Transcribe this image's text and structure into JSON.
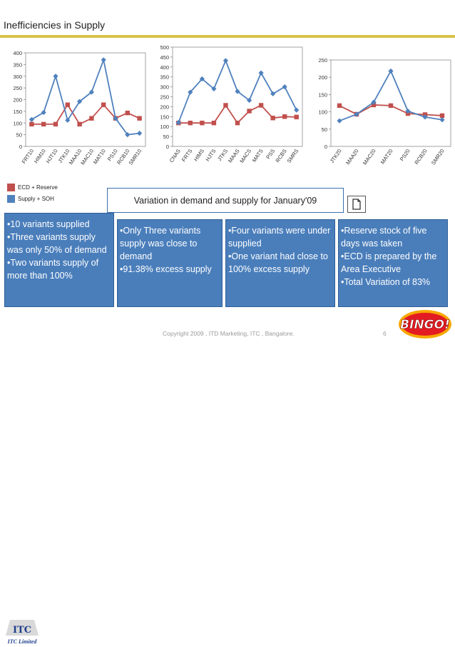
{
  "slide": {
    "title": "Inefficiencies in Supply",
    "variation_caption": "Variation  in demand and supply for January'09",
    "footer": "Copyright 2009 , ITD  Marketing, ITC , Bangalore.",
    "page_number": "6",
    "itc_logo_text": "ITC Limited",
    "bingo_logo_text": "BINGO!"
  },
  "legend": {
    "items": [
      {
        "label": "ECD + Reserve",
        "color": "#c0504d"
      },
      {
        "label": "Supply + SOH",
        "color": "#4f81bd"
      }
    ]
  },
  "boxes": [
    {
      "lines": [
        "•10  variants supplied",
        "•Three variants supply was only 50% of demand",
        "•Two variants supply of more than 100%"
      ]
    },
    {
      "lines": [
        "•Only Three variants supply was close to demand",
        "•91.38% excess supply"
      ]
    },
    {
      "lines": [
        "•Four variants were under supplied",
        "•One variant had close to 100% excess supply"
      ]
    },
    {
      "lines": [
        "•Reserve stock of five days was taken",
        "•ECD is prepared by the Area Executive",
        "•Total Variation of 83%"
      ]
    }
  ],
  "chart_data": [
    {
      "type": "line",
      "categories": [
        "FRT10",
        "HIM10",
        "HJT10",
        "JTK10",
        "MAA10",
        "MAC10",
        "MAT10",
        "PS10",
        "RCB10",
        "SMR10"
      ],
      "ylim": [
        0,
        400
      ],
      "yticks": [
        0,
        50,
        100,
        150,
        200,
        250,
        300,
        350,
        400
      ],
      "series": [
        {
          "name": "ECD + Reserve",
          "color": "#c0504d",
          "values": [
            95,
            95,
            95,
            178,
            95,
            120,
            178,
            120,
            143,
            120
          ]
        },
        {
          "name": "Supply + SOH",
          "color": "#4f81bd",
          "values": [
            115,
            145,
            300,
            112,
            192,
            232,
            370,
            120,
            50,
            56
          ]
        }
      ]
    },
    {
      "type": "line",
      "categories": [
        "CNAS",
        "FRTS",
        "HIMS",
        "HJTS",
        "JTKS",
        "MAAS",
        "MACS",
        "MATS",
        "PSS",
        "RCBS",
        "SMRS"
      ],
      "ylim": [
        0,
        500
      ],
      "yticks": [
        0,
        50,
        100,
        150,
        200,
        250,
        300,
        350,
        400,
        450,
        500
      ],
      "series": [
        {
          "name": "ECD + Reserve",
          "color": "#c0504d",
          "values": [
            118,
            118,
            118,
            118,
            207,
            118,
            178,
            207,
            143,
            150,
            148
          ]
        },
        {
          "name": "Supply + SOH",
          "color": "#4f81bd",
          "values": [
            120,
            273,
            340,
            290,
            432,
            277,
            232,
            370,
            265,
            300,
            183
          ]
        }
      ]
    },
    {
      "type": "line",
      "categories": [
        "JTK20",
        "MAA20",
        "MAC20",
        "MAT20",
        "PS20",
        "RCB20",
        "SMR20"
      ],
      "ylim": [
        0,
        250
      ],
      "yticks": [
        0,
        50,
        100,
        150,
        200,
        250
      ],
      "series": [
        {
          "name": "ECD + Reserve",
          "color": "#c0504d",
          "values": [
            118,
            93,
            120,
            118,
            95,
            92,
            89
          ]
        },
        {
          "name": "Supply + SOH",
          "color": "#4f81bd",
          "values": [
            74,
            93,
            128,
            218,
            102,
            85,
            77
          ]
        }
      ]
    }
  ]
}
